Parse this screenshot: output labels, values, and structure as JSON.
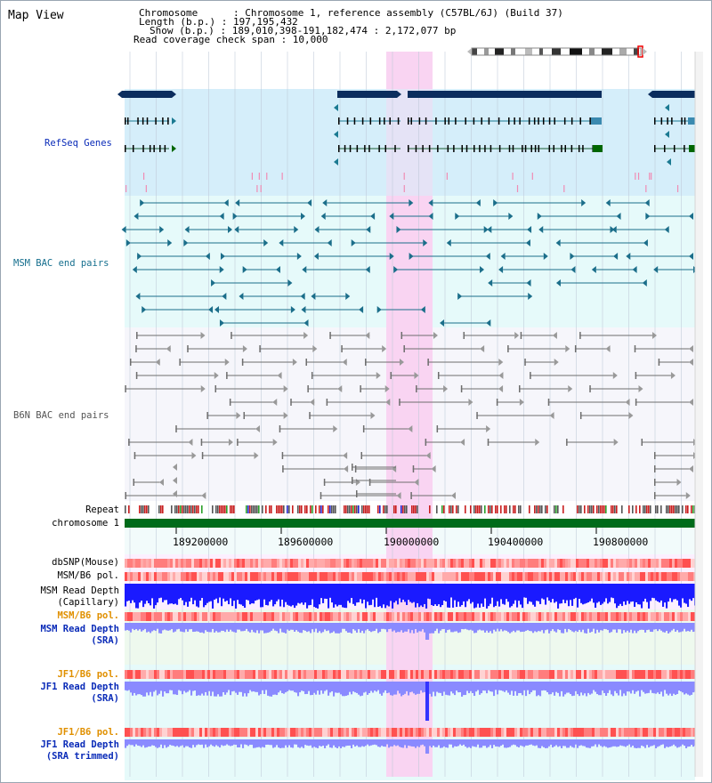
{
  "view": {
    "title": "Map View",
    "info_lines": [
      "Chromosome      : Chromosome 1, reference assembly (C57BL/6J) (Build 37)",
      "Length (b.p.) : 197,195,432",
      "Show (b.p.) : 189,010,398-191,182,474 : 2,172,077 bp",
      "Read coverage check span : 10,000"
    ]
  },
  "tracks": {
    "refseq": "RefSeq Genes",
    "msm_bac": "MSM BAC end pairs",
    "b6n_bac": "B6N BAC end pairs",
    "repeat": "Repeat",
    "chromosome": "chromosome 1",
    "dbsnp": "dbSNP(Mouse)",
    "msm_pol_1": "MSM/B6 pol.",
    "msm_depth_cap_1": "MSM Read Depth",
    "msm_depth_cap_2": "(Capillary)",
    "msm_pol_2": "MSM/B6 pol.",
    "msm_depth_sra_1": "MSM Read Depth",
    "msm_depth_sra_2": "(SRA)",
    "jf1_pol_1": "JF1/B6 pol.",
    "jf1_depth_sra_1": "JF1 Read Depth",
    "jf1_depth_sra_2": "(SRA)",
    "jf1_pol_2": "JF1/B6 pol.",
    "jf1_depth_trim_1": "JF1 Read Depth",
    "jf1_depth_trim_2": "(SRA trimmed)"
  },
  "axis": {
    "ticks": [
      "189200000",
      "189600000",
      "190000000",
      "190400000",
      "190800000"
    ]
  },
  "colors": {
    "refseq_bg": "#d6eefa",
    "bac_bg": "#e6fafa",
    "highlight": "#f9d4f2",
    "gene_dark": "#0b2d5e",
    "gene_teal": "#1b7a92",
    "gene_green": "#006600",
    "msm_bac": "#1b6e8a",
    "b6n_bac": "#6e6e6e",
    "chrom_bar": "#006b1a",
    "depth_capillary": "#1a1aff",
    "depth_sra": "#8a8aff"
  }
}
